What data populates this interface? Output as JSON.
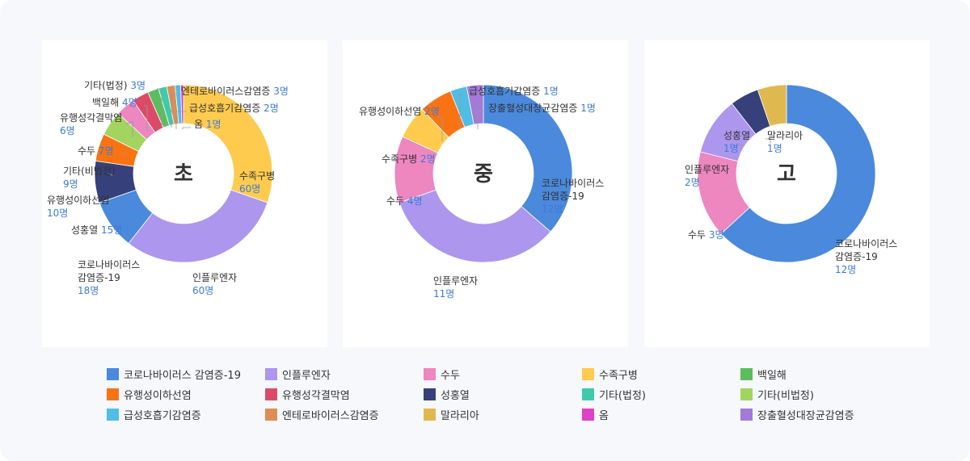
{
  "chart_data": [
    {
      "type": "donut",
      "center_label": "초",
      "slices": [
        {
          "name": "수족구병",
          "value": 60,
          "color": "#fecb4f",
          "label_lines": [
            "수족구병",
            "60명"
          ]
        },
        {
          "name": "인플루엔자",
          "value": 60,
          "color": "#ad96ee",
          "label_lines": [
            "인플루엔자",
            "60명"
          ]
        },
        {
          "name": "코로나바이러스 감염증-19",
          "value": 18,
          "color": "#4a89dc",
          "label_lines": [
            "코로나바이러스",
            "감염증-19",
            "18명"
          ]
        },
        {
          "name": "성홍열",
          "value": 15,
          "color": "#36407a",
          "label_lines": [
            "성홍열 15명"
          ]
        },
        {
          "name": "유행성이하선염",
          "value": 10,
          "color": "#f97313",
          "label_lines": [
            "유행성이하선염",
            "10명"
          ]
        },
        {
          "name": "기타(비법정)",
          "value": 9,
          "color": "#a3d45f",
          "label_lines": [
            "기타(비법정)",
            "9명"
          ]
        },
        {
          "name": "수두",
          "value": 7,
          "color": "#ee86c0",
          "label_lines": [
            "수두 7명"
          ]
        },
        {
          "name": "유행성각결막염",
          "value": 6,
          "color": "#dd4a68",
          "label_lines": [
            "유행성각결막염",
            "6명"
          ]
        },
        {
          "name": "백일해",
          "value": 4,
          "color": "#5cbd5f",
          "label_lines": [
            "백일해 4명"
          ]
        },
        {
          "name": "기타(법정)",
          "value": 3,
          "color": "#3ecbab",
          "label_lines": [
            "기타(법정) 3명"
          ]
        },
        {
          "name": "엔테로바이러스감염증",
          "value": 3,
          "color": "#dd8e58",
          "label_lines": [
            "엔테로바이러스감염증 3명"
          ]
        },
        {
          "name": "급성호흡기감염증",
          "value": 2,
          "color": "#4fbde5",
          "label_lines": [
            "급성호흡기감염증 2명"
          ]
        },
        {
          "name": "옴",
          "value": 1,
          "color": "#df42c8",
          "label_lines": [
            "옴 1명"
          ]
        }
      ]
    },
    {
      "type": "donut",
      "center_label": "중",
      "slices": [
        {
          "name": "코로나바이러스 감염증-19",
          "value": 12,
          "color": "#4a89dc",
          "label_lines": [
            "코로나바이러스",
            "감염증-19",
            "12명"
          ]
        },
        {
          "name": "인플루엔자",
          "value": 11,
          "color": "#ad96ee",
          "label_lines": [
            "인플루엔자",
            "11명"
          ]
        },
        {
          "name": "수두",
          "value": 4,
          "color": "#ee86c0",
          "label_lines": [
            "수두 4명"
          ]
        },
        {
          "name": "수족구병",
          "value": 2,
          "color": "#fecb4f",
          "label_lines": [
            "수족구병 2명"
          ]
        },
        {
          "name": "유행성이하선염",
          "value": 2,
          "color": "#f97313",
          "label_lines": [
            "유행성이하선염 2명"
          ]
        },
        {
          "name": "급성호흡기감염증",
          "value": 1,
          "color": "#4fbde5",
          "label_lines": [
            "급성호흡기감염증 1명"
          ]
        },
        {
          "name": "장출혈성대장균감염증",
          "value": 1,
          "color": "#a479d8",
          "label_lines": [
            "장출혈성대장균감염증 1명"
          ]
        }
      ]
    },
    {
      "type": "donut",
      "center_label": "고",
      "slices": [
        {
          "name": "코로나바이러스 감염증-19",
          "value": 12,
          "color": "#4a89dc",
          "label_lines": [
            "코로나바이러스",
            "감염증-19",
            "12명"
          ]
        },
        {
          "name": "수두",
          "value": 3,
          "color": "#ee86c0",
          "label_lines": [
            "수두 3명"
          ]
        },
        {
          "name": "인플루엔자",
          "value": 2,
          "color": "#ad96ee",
          "label_lines": [
            "인플루엔자",
            "2명"
          ]
        },
        {
          "name": "성홍열",
          "value": 1,
          "color": "#36407a",
          "label_lines": [
            "성홍열",
            "1명"
          ]
        },
        {
          "name": "말라리아",
          "value": 1,
          "color": "#e0b850",
          "label_lines": [
            "말라리아",
            "1명"
          ]
        }
      ]
    }
  ],
  "legend": [
    {
      "name": "코로나바이러스 감염증-19",
      "color": "#4a89dc"
    },
    {
      "name": "인플루엔자",
      "color": "#ad96ee"
    },
    {
      "name": "수두",
      "color": "#ee86c0"
    },
    {
      "name": "수족구병",
      "color": "#fecb4f"
    },
    {
      "name": "백일해",
      "color": "#5cbd5f"
    },
    {
      "name": "유행성이하선염",
      "color": "#f97313"
    },
    {
      "name": "유행성각결막염",
      "color": "#dd4a68"
    },
    {
      "name": "성홍열",
      "color": "#36407a"
    },
    {
      "name": "기타(법정)",
      "color": "#3ecbab"
    },
    {
      "name": "기타(비법정)",
      "color": "#a3d45f"
    },
    {
      "name": "급성호흡기감염증",
      "color": "#4fbde5"
    },
    {
      "name": "엔테로바이러스감염증",
      "color": "#dd8e58"
    },
    {
      "name": "말라리아",
      "color": "#e0b850"
    },
    {
      "name": "옴",
      "color": "#df42c8"
    },
    {
      "name": "장출혈성대장균감염증",
      "color": "#a479d8"
    }
  ]
}
